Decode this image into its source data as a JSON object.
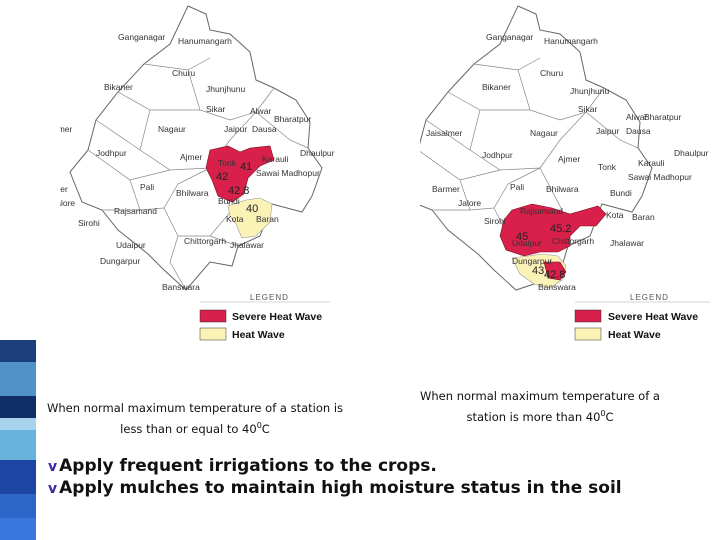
{
  "colors": {
    "severe": "#d8204a",
    "heat": "#fbf2b6",
    "stripes": [
      "#1a3f7a",
      "#4f93c7",
      "#2a5fb5",
      "#0f2f66",
      "#68b2de",
      "#a8d3ec",
      "#2c66c9",
      "#1d45a3",
      "#3a78e0"
    ]
  },
  "legend": {
    "title": "LEGEND",
    "severe": "Severe Heat Wave",
    "heat": "Heat Wave"
  },
  "left_map": {
    "places": {
      "ganganagar": "Ganganagar",
      "hanumangarh": "Hanumangarh",
      "bikaner": "Bikaner",
      "churu": "Churu",
      "jhunjhunu": "Jhunjhunu",
      "sikar": "Sikar",
      "alwar": "Alwar",
      "bharatpur": "Bharatpur",
      "jaisalmer": "Jaisalmer",
      "nagaur": "Nagaur",
      "jaipur": "Jaipur",
      "dausa": "Dausa",
      "jodhpur": "Jodhpur",
      "dhaulpur": "Dhaulpur",
      "ajmer": "Ajmer",
      "tonk": "Tonk",
      "karauli": "Karauli",
      "sawai": "Sawai Madhopur",
      "barmer": "Barmer",
      "pali": "Pali",
      "bhilwara": "Bhilwara",
      "jalore": "Jalore",
      "bundi": "Bundi",
      "rajsamand": "Rajsamand",
      "kota": "Kota",
      "baran": "Baran",
      "sirohi": "Sirohi",
      "chittorgarh": "Chittorgarh",
      "udaipur": "Udaipur",
      "jhalawar": "Jhalawar",
      "dungarpur": "Dungarpur",
      "banswara": "Banswara"
    },
    "values": {
      "v1": "41",
      "v2": "42",
      "v3": "42.8",
      "v4": "40"
    }
  },
  "right_map": {
    "places": {
      "ganganagar": "Ganganagar",
      "hanumangarh": "Hanumangarh",
      "bikaner": "Bikaner",
      "churu": "Churu",
      "jhunjhunu": "Jhunjhunu",
      "sikar": "Sikar",
      "alwar": "Alwar",
      "bharatpur": "Bharatpur",
      "jaisalmer": "Jaisalmer",
      "nagaur": "Nagaur",
      "jaipur": "Jaipur",
      "dausa": "Dausa",
      "jodhpur": "Jodhpur",
      "dhaulpur": "Dhaulpur",
      "ajmer": "Ajmer",
      "tonk": "Tonk",
      "karauli": "Karauli",
      "sawai": "Sawai Madhopur",
      "barmer": "Barmer",
      "pali": "Pali",
      "bhilwara": "Bhilwara",
      "bundi": "Bundi",
      "jalore": "Jalore",
      "rajsamand": "Rajsamand",
      "kota": "Kota",
      "baran": "Baran",
      "sirohi": "Sirohi",
      "chittorgarh": "Chittorgarh",
      "udaipur": "Udaipur",
      "jhalawar": "Jhalawar",
      "dungarpur": "Dungarpur",
      "banswara": "Banswara"
    },
    "values": {
      "v1": "45.2",
      "v2": "45",
      "v3": "43",
      "v4": "42.8"
    }
  },
  "captions": {
    "left": {
      "line1": "When normal maximum temperature of a station is",
      "line2_pre": "less than or  equal to 40",
      "sup": "0",
      "unit": "C"
    },
    "right": {
      "line1": "When normal maximum temperature of a",
      "line2_pre": "station is more  than 40",
      "sup": "0",
      "unit": "C"
    }
  },
  "bullets": [
    "Apply frequent irrigations to the crops.",
    "Apply  mulches to maintain high moisture status in the soil"
  ],
  "bullet_symbol": "v"
}
